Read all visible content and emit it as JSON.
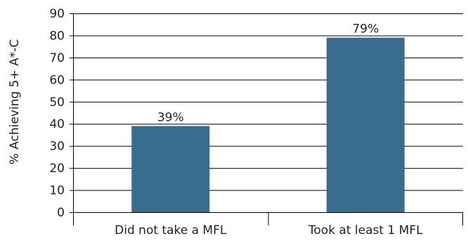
{
  "chart_data": {
    "type": "bar",
    "categories": [
      "Did not take a MFL",
      "Took at least 1 MFL"
    ],
    "values": [
      39,
      79
    ],
    "data_labels": [
      "39%",
      "79%"
    ],
    "title": "",
    "xlabel": "",
    "ylabel": "% Achieving 5+ A*-C",
    "ylim": [
      0,
      90
    ],
    "yticks": [
      0,
      10,
      20,
      30,
      40,
      50,
      60,
      70,
      80,
      90
    ],
    "grid": true,
    "colors": {
      "bar": "#386d8f",
      "grid": "#000000",
      "text": "#222222"
    }
  }
}
